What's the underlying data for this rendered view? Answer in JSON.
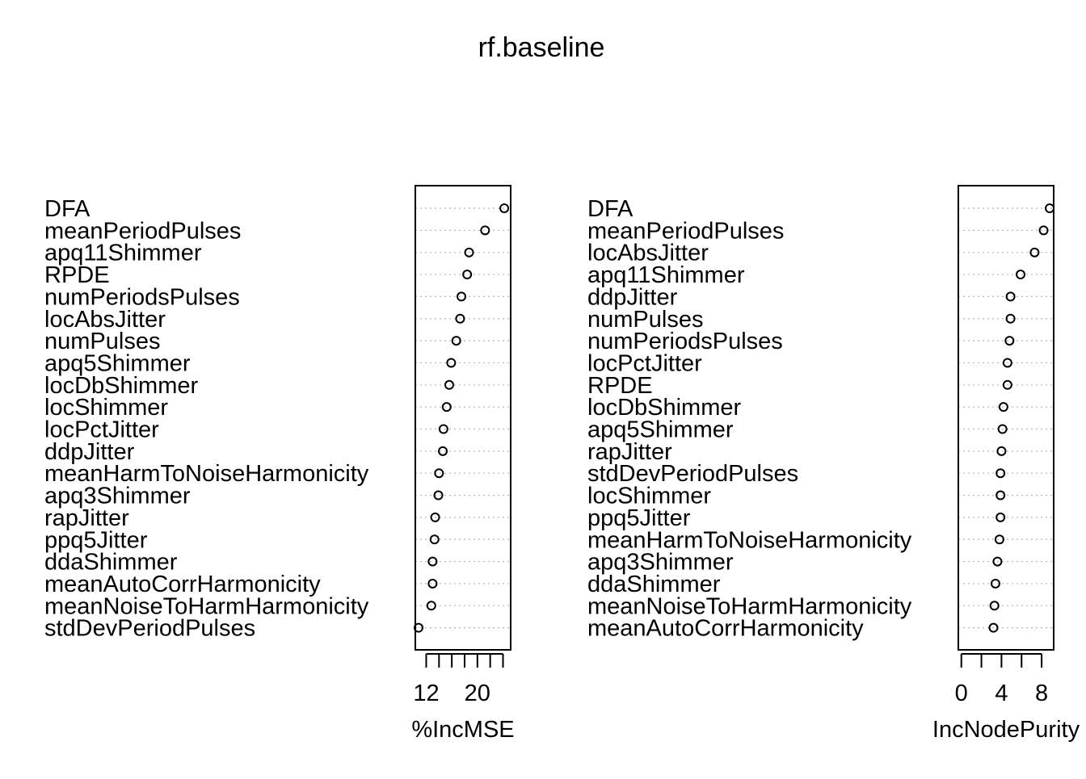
{
  "title": "rf.baseline",
  "chart_data": [
    {
      "type": "scatter",
      "xlabel": "%IncMSE",
      "xlim": [
        10.3,
        25.2
      ],
      "xticks": [
        12,
        14,
        16,
        18,
        20,
        22,
        24
      ],
      "xtick_labels": [
        "12",
        "",
        "",
        "",
        "20",
        "",
        ""
      ],
      "grid": true,
      "categories": [
        "DFA",
        "meanPeriodPulses",
        "apq11Shimmer",
        "RPDE",
        "numPeriodsPulses",
        "locAbsJitter",
        "numPulses",
        "apq5Shimmer",
        "locDbShimmer",
        "locShimmer",
        "locPctJitter",
        "ddpJitter",
        "meanHarmToNoiseHarmonicity",
        "apq3Shimmer",
        "rapJitter",
        "ppq5Jitter",
        "ddaShimmer",
        "meanAutoCorrHarmonicity",
        "meanNoiseToHarmHarmonicity",
        "stdDevPeriodPulses"
      ],
      "values": [
        24.2,
        21.2,
        18.7,
        18.4,
        17.5,
        17.3,
        16.7,
        15.9,
        15.6,
        15.2,
        14.7,
        14.6,
        14.0,
        13.9,
        13.4,
        13.3,
        13.0,
        13.0,
        12.8,
        10.8
      ]
    },
    {
      "type": "scatter",
      "xlabel": "IncNodePurity",
      "xlim": [
        -0.3,
        9.2
      ],
      "xticks": [
        0,
        2,
        4,
        6,
        8
      ],
      "xtick_labels": [
        "0",
        "",
        "4",
        "",
        "8"
      ],
      "grid": true,
      "categories": [
        "DFA",
        "meanPeriodPulses",
        "locAbsJitter",
        "apq11Shimmer",
        "ddpJitter",
        "numPulses",
        "numPeriodsPulses",
        "locPctJitter",
        "RPDE",
        "locDbShimmer",
        "apq5Shimmer",
        "rapJitter",
        "stdDevPeriodPulses",
        "locShimmer",
        "ppq5Jitter",
        "meanHarmToNoiseHarmonicity",
        "apq3Shimmer",
        "ddaShimmer",
        "meanNoiseToHarmHarmonicity",
        "meanAutoCorrHarmonicity"
      ],
      "values": [
        8.8,
        8.2,
        7.3,
        5.9,
        4.9,
        4.9,
        4.8,
        4.6,
        4.6,
        4.2,
        4.1,
        4.0,
        3.9,
        3.9,
        3.9,
        3.8,
        3.6,
        3.4,
        3.3,
        3.2
      ]
    }
  ]
}
